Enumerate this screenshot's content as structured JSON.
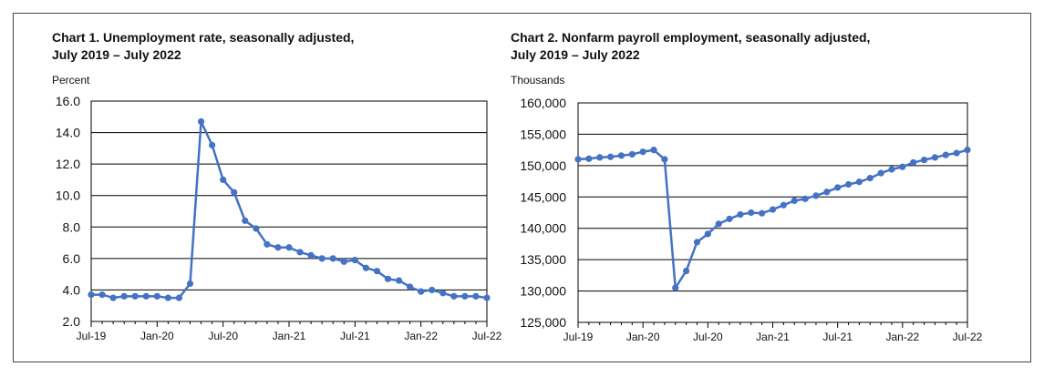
{
  "chart_data": [
    {
      "type": "line",
      "title": "Chart 1. Unemployment rate, seasonally adjusted,",
      "subtitle": "July 2019 – July 2022",
      "ylabel": "Percent",
      "ylim": [
        2.0,
        16.0
      ],
      "yticks": [
        2.0,
        4.0,
        6.0,
        8.0,
        10.0,
        12.0,
        14.0,
        16.0
      ],
      "ytick_labels": [
        "2.0",
        "4.0",
        "6.0",
        "8.0",
        "10.0",
        "12.0",
        "14.0",
        "16.0"
      ],
      "xtick_labels": [
        "Jul-19",
        "Jan-20",
        "Jul-20",
        "Jan-21",
        "Jul-21",
        "Jan-22",
        "Jul-22"
      ],
      "grid": true,
      "color": "#4472C4",
      "values": [
        3.7,
        3.7,
        3.5,
        3.6,
        3.6,
        3.6,
        3.6,
        3.5,
        3.5,
        4.4,
        14.7,
        13.2,
        11.0,
        10.2,
        8.4,
        7.9,
        6.9,
        6.7,
        6.7,
        6.4,
        6.2,
        6.0,
        6.0,
        5.8,
        5.9,
        5.4,
        5.2,
        4.7,
        4.6,
        4.2,
        3.9,
        4.0,
        3.8,
        3.6,
        3.6,
        3.6,
        3.5
      ]
    },
    {
      "type": "line",
      "title": "Chart 2. Nonfarm payroll employment, seasonally adjusted,",
      "subtitle": "July 2019 – July 2022",
      "ylabel": "Thousands",
      "ylim": [
        125000,
        160000
      ],
      "yticks": [
        125000,
        130000,
        135000,
        140000,
        145000,
        150000,
        155000,
        160000
      ],
      "ytick_labels": [
        "125,000",
        "130,000",
        "135,000",
        "140,000",
        "145,000",
        "150,000",
        "155,000",
        "160,000"
      ],
      "xtick_labels": [
        "Jul-19",
        "Jan-20",
        "Jul-20",
        "Jan-21",
        "Jul-21",
        "Jan-22",
        "Jul-22"
      ],
      "grid": true,
      "color": "#4472C4",
      "values": [
        151000,
        151100,
        151300,
        151400,
        151600,
        151800,
        152200,
        152500,
        151000,
        130500,
        133200,
        137800,
        139100,
        140700,
        141500,
        142200,
        142500,
        142400,
        143000,
        143700,
        144400,
        144700,
        145200,
        145800,
        146500,
        147000,
        147400,
        148000,
        148800,
        149400,
        149800,
        150500,
        150900,
        151300,
        151700,
        152000,
        152500
      ]
    }
  ]
}
